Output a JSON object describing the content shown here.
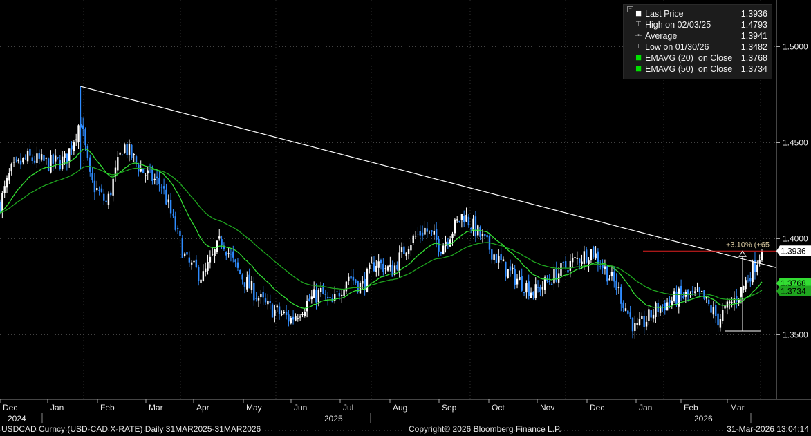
{
  "legend": {
    "rows": [
      {
        "label": "Last Price",
        "value": "1.3936",
        "icon": "white-square-icon",
        "color": "#ffffff"
      },
      {
        "label": "High on 02/03/25",
        "value": "1.4793",
        "icon": "high-marker-icon",
        "color": "#aaaaaa"
      },
      {
        "label": "Average",
        "value": "1.3941",
        "icon": "average-marker-icon",
        "color": "#aaaaaa"
      },
      {
        "label": "Low on 01/30/26",
        "value": "1.3482",
        "icon": "low-marker-icon",
        "color": "#aaaaaa"
      },
      {
        "label": "EMAVG (20)  on Close",
        "value": "1.3768",
        "icon": "green-square-icon",
        "color": "#00e000"
      },
      {
        "label": "EMAVG (50)  on Close",
        "value": "1.3734",
        "icon": "green-square-icon",
        "color": "#00e000"
      }
    ]
  },
  "footer": {
    "left": "USDCAD Curncy (USD-CAD X-RATE) Daily 31MAR2025-31MAR2026",
    "center": "Copyright© 2026 Bloomberg Finance L.P.",
    "right": "31-Mar-2026 13:04:14"
  },
  "chart_data": {
    "type": "candlestick",
    "y_ticks": [
      "1.3500",
      "1.4000",
      "1.4500",
      "1.5000"
    ],
    "ylim": [
      1.3285,
      1.5286
    ],
    "x_months": [
      "Dec",
      "Jan",
      "Feb",
      "Mar",
      "Apr",
      "May",
      "Jun",
      "Jul",
      "Aug",
      "Sep",
      "Oct",
      "Nov",
      "Dec",
      "Jan",
      "Feb",
      "Mar"
    ],
    "x_years": [
      "2024",
      "2025",
      "2026"
    ],
    "grid": true,
    "colors": {
      "up": "#ffffff",
      "down": "#2f8cff",
      "ema20": "#33dd33",
      "ema50": "#1fa51f",
      "trend": "#ffffff",
      "level": "#e02020",
      "measure": "#ffffff",
      "annotation": "#d8c8a0"
    },
    "price_path": [
      [
        1.418,
        0.0
      ],
      [
        1.435,
        0.02
      ],
      [
        1.442,
        0.05
      ],
      [
        1.439,
        0.09
      ],
      [
        1.441,
        0.12
      ],
      [
        1.462,
        0.147
      ],
      [
        1.43,
        0.165
      ],
      [
        1.418,
        0.195
      ],
      [
        1.449,
        0.225
      ],
      [
        1.435,
        0.26
      ],
      [
        1.428,
        0.295
      ],
      [
        1.41,
        0.315
      ],
      [
        1.388,
        0.34
      ],
      [
        1.38,
        0.37
      ],
      [
        1.4,
        0.405
      ],
      [
        1.385,
        0.43
      ],
      [
        1.375,
        0.455
      ],
      [
        1.365,
        0.485
      ],
      [
        1.358,
        0.53
      ],
      [
        1.368,
        0.565
      ],
      [
        1.372,
        0.585
      ],
      [
        1.365,
        0.605
      ],
      [
        1.381,
        0.635
      ],
      [
        1.375,
        0.66
      ],
      [
        1.388,
        0.685
      ],
      [
        1.383,
        0.715
      ],
      [
        1.398,
        0.745
      ],
      [
        1.405,
        0.775
      ],
      [
        1.396,
        0.805
      ],
      [
        1.413,
        0.845
      ],
      [
        1.4,
        0.88
      ],
      [
        1.383,
        0.925
      ],
      [
        1.372,
        0.975
      ],
      [
        1.385,
        1.03
      ],
      [
        1.394,
        1.08
      ],
      [
        1.375,
        1.125
      ],
      [
        1.352,
        1.16
      ],
      [
        1.364,
        1.2
      ],
      [
        1.37,
        1.24
      ],
      [
        1.37,
        1.28
      ],
      [
        1.358,
        1.31
      ],
      [
        1.372,
        1.35
      ],
      [
        1.3936,
        1.39
      ]
    ],
    "last_price": 1.3936,
    "high": {
      "date": "02/03/25",
      "value": 1.4793
    },
    "average": 1.3941,
    "low": {
      "date": "01/30/26",
      "value": 1.3482
    },
    "ema20": 1.3768,
    "ema50": 1.3734,
    "trendline": {
      "from": 1.4793,
      "to": 1.385
    },
    "support_level": 1.3734,
    "resistance_level": 1.3936,
    "measure": {
      "from": 1.352,
      "to": 1.3936,
      "label": "+3.10% (+65"
    },
    "price_labels": [
      {
        "text": "1.3936",
        "bg": "#ffffff",
        "fg": "#000000"
      },
      {
        "text": "1.3768",
        "bg": "#33dd33",
        "fg": "#000000"
      },
      {
        "text": "1.3734",
        "bg": "#1fa51f",
        "fg": "#000000"
      }
    ]
  }
}
